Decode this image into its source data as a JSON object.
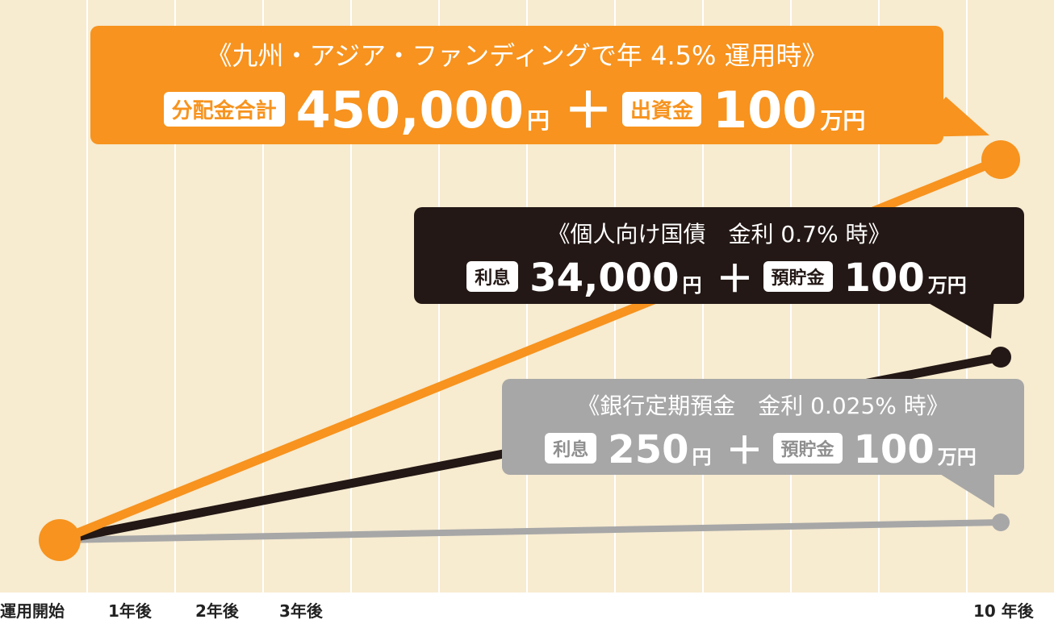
{
  "chart_data": {
    "type": "line",
    "x": [
      "運用開始",
      "1年後",
      "2年後",
      "3年後",
      "10 年後"
    ],
    "xpos": [
      0,
      1,
      2,
      3,
      10
    ],
    "series": [
      {
        "key": "funding",
        "color": "#F7931E",
        "start": 1000000,
        "end": 1450000
      },
      {
        "key": "bond",
        "color": "#231815",
        "start": 1000000,
        "end": 1034000
      },
      {
        "key": "bank",
        "color": "#A7A7A7",
        "start": 1000000,
        "end": 1000250
      }
    ],
    "grid": true
  },
  "callouts": {
    "funding": {
      "title": "《九州・アジア・ファンディングで年 4.5% 運用時》",
      "tag1": "分配金合計",
      "amount": "450,000",
      "unit1": "円",
      "plus": "＋",
      "tag2": "出資金",
      "principal": "100",
      "unit2": "万円",
      "color": "#F7931E"
    },
    "bond": {
      "title": "《個人向け国債　金利 0.7% 時》",
      "tag1": "利息",
      "amount": "34,000",
      "unit1": "円",
      "plus": "＋",
      "tag2": "預貯金",
      "principal": "100",
      "unit2": "万円",
      "color": "#231815"
    },
    "bank": {
      "title": "《銀行定期預金　金利 0.025% 時》",
      "tag1": "利息",
      "amount": "250",
      "unit1": "円",
      "plus": "＋",
      "tag2": "預貯金",
      "principal": "100",
      "unit2": "万円",
      "color": "#A7A7A7"
    }
  },
  "colors": {
    "background": "#F7EBD0",
    "grid": "#FFFFFF",
    "axis_text": "#222222"
  }
}
